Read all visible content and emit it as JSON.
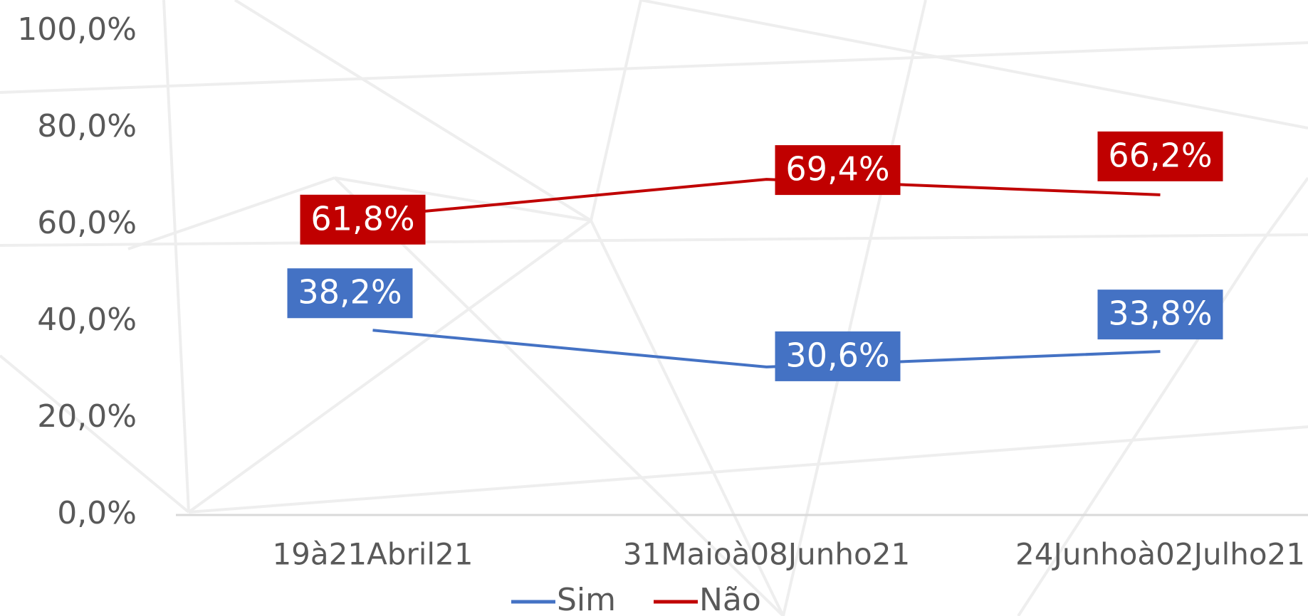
{
  "chart_data": {
    "type": "line",
    "categories": [
      "19à21Abril21",
      "31Maioà08Junho21",
      "24Junhoà02Julho21"
    ],
    "series": [
      {
        "name": "Sim",
        "color": "#4472c4",
        "values": [
          38.2,
          30.6,
          33.8
        ],
        "value_labels": [
          "38,2%",
          "30,6%",
          "33,8%"
        ]
      },
      {
        "name": "Não",
        "color": "#c00000",
        "values": [
          61.8,
          69.4,
          66.2
        ],
        "value_labels": [
          "61,8%",
          "69,4%",
          "66,2%"
        ]
      }
    ],
    "ylim": [
      0,
      100
    ],
    "yticks": [
      {
        "value": 0,
        "label": "0,0%"
      },
      {
        "value": 20,
        "label": "20,0%"
      },
      {
        "value": 40,
        "label": "40,0%"
      },
      {
        "value": 60,
        "label": "60,0%"
      },
      {
        "value": 80,
        "label": "80,0%"
      },
      {
        "value": 100,
        "label": "100,0%"
      }
    ],
    "legend": "bottom"
  }
}
